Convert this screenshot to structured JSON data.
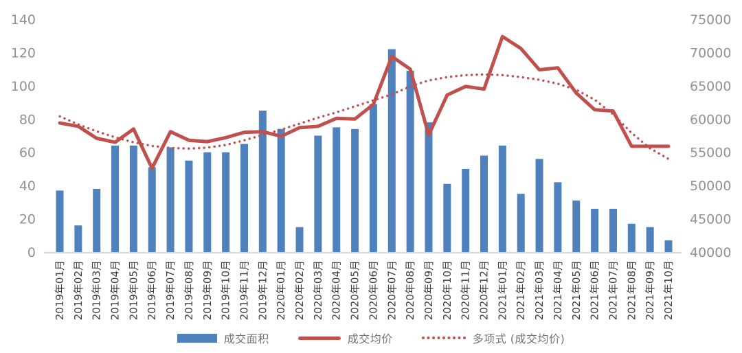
{
  "colors": {
    "bar": "#4f81bd",
    "line": "#c0504d",
    "axis_label": "#919191",
    "x_label": "#3d3d3d",
    "baseline": "#d9d9d9",
    "legend_text": "#757575"
  },
  "chart_data": {
    "type": "combo-bar-line",
    "title": "",
    "grid": false,
    "legend_position": "bottom",
    "categories": [
      "2019年01月",
      "2019年02月",
      "2019年03月",
      "2019年04月",
      "2019年05月",
      "2019年06月",
      "2019年07月",
      "2019年08月",
      "2019年09月",
      "2019年10月",
      "2019年11月",
      "2019年12月",
      "2020年01月",
      "2020年02月",
      "2020年03月",
      "2020年04月",
      "2020年05月",
      "2020年06月",
      "2020年07月",
      "2020年08月",
      "2020年09月",
      "2020年10月",
      "2020年11月",
      "2020年12月",
      "2021年01月",
      "2021年02月",
      "2021年03月",
      "2021年04月",
      "2021年05月",
      "2021年06月",
      "2021年07月",
      "2021年08月",
      "2021年09月",
      "2021年10月"
    ],
    "series": [
      {
        "name": "成交面积",
        "type": "bar",
        "axis": "left",
        "color": "#4f81bd",
        "values": [
          37,
          16,
          38,
          64,
          64,
          51,
          63,
          55,
          60,
          60,
          65,
          85,
          74,
          15,
          70,
          75,
          74,
          89,
          122,
          109,
          78,
          41,
          50,
          58,
          64,
          35,
          56,
          42,
          31,
          26,
          26,
          17,
          15,
          7
        ]
      },
      {
        "name": "成交均价",
        "type": "line",
        "axis": "right",
        "color": "#c0504d",
        "values": [
          59400,
          58900,
          57100,
          56500,
          58500,
          52600,
          58100,
          56800,
          56600,
          57200,
          58000,
          58100,
          57400,
          58700,
          58900,
          60100,
          60000,
          62200,
          69400,
          67500,
          57600,
          63600,
          64900,
          64500,
          72400,
          70600,
          67400,
          67700,
          63900,
          61400,
          61200,
          55900,
          55900,
          55900
        ]
      },
      {
        "name": "多项式 (成交均价)",
        "type": "dotted-line",
        "axis": "right",
        "color": "#c0504d",
        "values": [
          60400,
          59200,
          58150,
          57250,
          56500,
          55950,
          55650,
          55550,
          55700,
          56100,
          56800,
          57600,
          58400,
          59300,
          60200,
          61000,
          61900,
          62800,
          63700,
          64900,
          65800,
          66300,
          66600,
          66700,
          66600,
          66300,
          65900,
          65300,
          64400,
          62900,
          60700,
          57900,
          55600,
          54000
        ]
      }
    ],
    "axes": {
      "left": {
        "min": 0,
        "max": 140,
        "step": 20,
        "ticks": [
          "0",
          "20",
          "40",
          "60",
          "80",
          "100",
          "120",
          "140"
        ]
      },
      "right": {
        "min": 40000,
        "max": 75000,
        "step": 5000,
        "ticks": [
          "40000",
          "45000",
          "50000",
          "55000",
          "60000",
          "65000",
          "70000",
          "75000"
        ]
      }
    }
  }
}
